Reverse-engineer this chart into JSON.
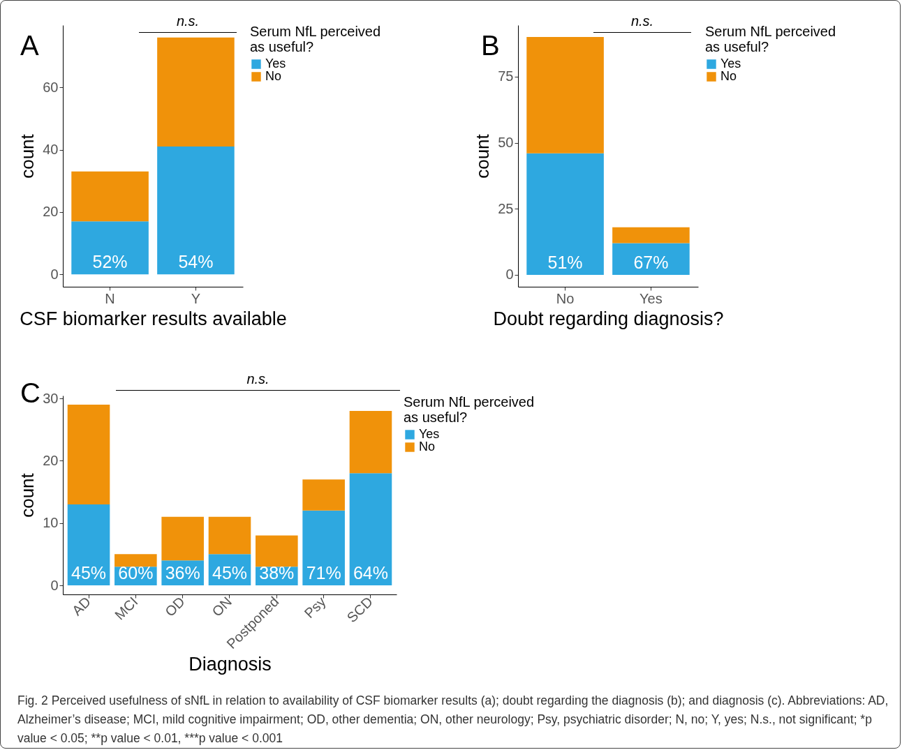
{
  "chart_data": [
    {
      "type": "bar",
      "stacked": true,
      "title": "A",
      "xlabel": "CSF biomarker results available",
      "ylabel": "count",
      "legend_title": "Serum NfL perceived as useful?",
      "legend": "right",
      "categories": [
        "N",
        "Y"
      ],
      "ylim": [
        -4,
        80
      ],
      "yticks": [
        0,
        20,
        40,
        60
      ],
      "annotations": [
        "n.s.",
        {
          "text": "52%",
          "x": "N",
          "y": 0
        },
        {
          "text": "54%",
          "x": "Y",
          "y": 0
        }
      ],
      "series": [
        {
          "name": "Yes",
          "color": "#2ea8e0",
          "values": [
            17,
            41
          ]
        },
        {
          "name": "No",
          "color": "#f0920a",
          "values": [
            16,
            35
          ]
        }
      ]
    },
    {
      "type": "bar",
      "stacked": true,
      "title": "B",
      "xlabel": "Doubt regarding diagnosis?",
      "ylabel": "count",
      "legend_title": "Serum NfL perceived as useful?",
      "legend": "right",
      "categories": [
        "No",
        "Yes"
      ],
      "ylim": [
        -4.5,
        94.5
      ],
      "yticks": [
        0,
        25,
        50,
        75
      ],
      "annotations": [
        "n.s.",
        {
          "text": "51%",
          "x": "No",
          "y": 0
        },
        {
          "text": "67%",
          "x": "Yes",
          "y": 0
        }
      ],
      "series": [
        {
          "name": "Yes",
          "color": "#2ea8e0",
          "values": [
            46,
            12
          ]
        },
        {
          "name": "No",
          "color": "#f0920a",
          "values": [
            44,
            6
          ]
        }
      ]
    },
    {
      "type": "bar",
      "stacked": true,
      "title": "C",
      "xlabel": "Diagnosis",
      "ylabel": "count",
      "legend_title": "Serum NfL perceived as useful?",
      "legend": "right",
      "categories": [
        "AD",
        "MCI",
        "OD",
        "ON",
        "Postponed",
        "Psy",
        "SCD"
      ],
      "ylim": [
        -1.45,
        30.45
      ],
      "yticks": [
        0,
        10,
        20,
        30
      ],
      "annotations": [
        "n.s.",
        {
          "text": "45%",
          "x": "AD",
          "y": 0
        },
        {
          "text": "60%",
          "x": "MCI",
          "y": 0
        },
        {
          "text": "36%",
          "x": "OD",
          "y": 0
        },
        {
          "text": "45%",
          "x": "ON",
          "y": 0
        },
        {
          "text": "38%",
          "x": "Postponed",
          "y": 0
        },
        {
          "text": "71%",
          "x": "Psy",
          "y": 0
        },
        {
          "text": "64%",
          "x": "SCD",
          "y": 0
        },
        "Fig. 2 Perceived usefulness of sNfL in relation to availability of CSF biomarker results (a); doubt regarding the diagnosis (b); and diagnosis (c). Abbreviations: AD, Alzheimer’s disease; MCI, mild cognitive impairment; OD, other dementia; ON, other neurology; Psy, psychiatric disorder; N, no; Y, yes; N.s., not significant; *p value < 0.05; **p value < 0.01, ***p value < 0.001"
      ],
      "series": [
        {
          "name": "Yes",
          "color": "#2ea8e0",
          "values": [
            13,
            3,
            4,
            5,
            3,
            12,
            18
          ]
        },
        {
          "name": "No",
          "color": "#f0920a",
          "values": [
            16,
            2,
            7,
            6,
            5,
            5,
            10
          ]
        }
      ]
    }
  ]
}
